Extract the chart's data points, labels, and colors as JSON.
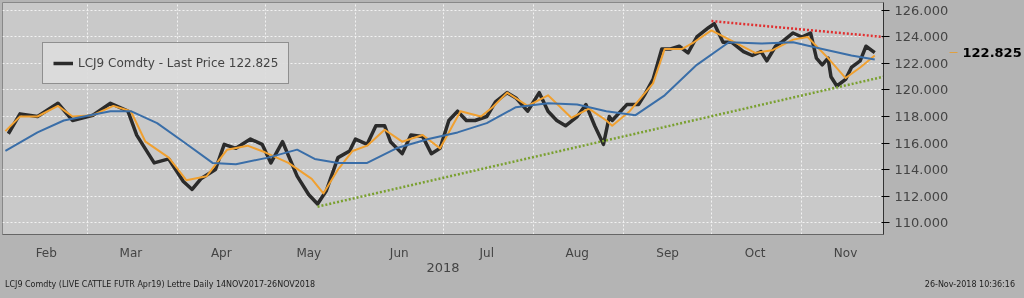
{
  "chart_data": {
    "type": "line",
    "xlabel": "2018",
    "x": [
      "2018-02-02",
      "2018-02-06",
      "2018-02-12",
      "2018-02-19",
      "2018-02-24",
      "2018-03-03",
      "2018-03-09",
      "2018-03-15",
      "2018-03-18",
      "2018-03-24",
      "2018-03-29",
      "2018-04-03",
      "2018-04-06",
      "2018-04-09",
      "2018-04-14",
      "2018-04-17",
      "2018-04-21",
      "2018-04-26",
      "2018-04-30",
      "2018-05-03",
      "2018-05-07",
      "2018-05-12",
      "2018-05-16",
      "2018-05-19",
      "2018-05-22",
      "2018-05-26",
      "2018-05-30",
      "2018-06-01",
      "2018-06-05",
      "2018-06-08",
      "2018-06-11",
      "2018-06-13",
      "2018-06-17",
      "2018-06-20",
      "2018-06-24",
      "2018-06-27",
      "2018-06-30",
      "2018-07-03",
      "2018-07-06",
      "2018-07-09",
      "2018-07-12",
      "2018-07-16",
      "2018-07-19",
      "2018-07-23",
      "2018-07-26",
      "2018-07-30",
      "2018-08-03",
      "2018-08-06",
      "2018-08-09",
      "2018-08-12",
      "2018-08-16",
      "2018-08-19",
      "2018-08-22",
      "2018-08-25",
      "2018-08-27",
      "2018-08-28",
      "2018-09-02",
      "2018-09-06",
      "2018-09-08",
      "2018-09-11",
      "2018-09-14",
      "2018-09-17",
      "2018-09-20",
      "2018-09-23",
      "2018-09-26",
      "2018-09-30",
      "2018-10-02",
      "2018-10-05",
      "2018-10-08",
      "2018-10-12",
      "2018-10-15",
      "2018-10-18",
      "2018-10-20",
      "2018-10-23",
      "2018-10-25",
      "2018-10-29",
      "2018-11-01",
      "2018-11-04",
      "2018-11-06",
      "2018-11-08",
      "2018-11-10",
      "2018-11-11",
      "2018-11-13",
      "2018-11-16",
      "2018-11-18",
      "2018-11-21",
      "2018-11-23",
      "2018-11-26"
    ],
    "series": [
      {
        "name": "LCJ9 Comdty - Last Price 122.825",
        "color": "#2b2b2b",
        "values": [
          116.7,
          118.2,
          118.0,
          119.0,
          117.7,
          118.1,
          119.0,
          118.4,
          116.6,
          114.5,
          114.8,
          113.1,
          112.5,
          113.3,
          114.0,
          115.9,
          115.6,
          116.3,
          115.9,
          114.5,
          116.1,
          113.5,
          112.1,
          111.4,
          112.4,
          114.9,
          115.4,
          116.3,
          115.9,
          117.3,
          117.3,
          116.1,
          115.2,
          116.6,
          116.5,
          115.2,
          115.6,
          117.7,
          118.4,
          117.7,
          117.7,
          118.0,
          119.1,
          119.8,
          119.4,
          118.4,
          119.8,
          118.4,
          117.7,
          117.3,
          118.0,
          118.9,
          117.3,
          115.9,
          118.0,
          117.7,
          118.9,
          118.9,
          119.6,
          120.8,
          123.1,
          123.1,
          123.3,
          122.8,
          124.0,
          124.7,
          125.0,
          123.6,
          123.6,
          122.9,
          122.6,
          122.9,
          122.2,
          123.3,
          123.6,
          124.3,
          124.0,
          124.3,
          122.4,
          121.9,
          122.4,
          121.0,
          120.3,
          120.8,
          121.7,
          122.2,
          123.3,
          122.825
        ]
      },
      {
        "color": "#f0a030",
        "x": [
          "2018-02-01",
          "2018-02-06",
          "2018-02-12",
          "2018-02-19",
          "2018-02-24",
          "2018-03-03",
          "2018-03-10",
          "2018-03-16",
          "2018-03-21",
          "2018-03-29",
          "2018-04-04",
          "2018-04-11",
          "2018-04-18",
          "2018-04-25",
          "2018-05-01",
          "2018-05-09",
          "2018-05-17",
          "2018-05-21",
          "2018-05-26",
          "2018-05-31",
          "2018-06-05",
          "2018-06-11",
          "2018-06-17",
          "2018-06-24",
          "2018-06-30",
          "2018-07-07",
          "2018-07-14",
          "2018-07-18",
          "2018-07-23",
          "2018-07-30",
          "2018-08-06",
          "2018-08-14",
          "2018-08-20",
          "2018-08-26",
          "2018-08-28",
          "2018-09-03",
          "2018-09-11",
          "2018-09-15",
          "2018-09-21",
          "2018-09-25",
          "2018-10-01",
          "2018-10-09",
          "2018-10-16",
          "2018-10-22",
          "2018-10-29",
          "2018-11-03",
          "2018-11-10",
          "2018-11-16",
          "2018-11-21",
          "2018-11-26"
        ],
        "values": [
          116.9,
          118.0,
          118.0,
          118.8,
          118.0,
          118.1,
          118.8,
          118.4,
          116.1,
          114.9,
          113.2,
          113.5,
          115.5,
          115.8,
          115.3,
          114.5,
          113.3,
          112.2,
          114.0,
          115.4,
          115.8,
          117.0,
          116.1,
          116.6,
          115.6,
          118.4,
          118.0,
          118.7,
          119.8,
          118.8,
          119.6,
          117.9,
          118.6,
          117.7,
          117.3,
          118.4,
          120.5,
          123.1,
          123.1,
          123.6,
          124.5,
          123.6,
          122.8,
          123.0,
          123.8,
          124.0,
          122.4,
          120.9,
          121.7,
          122.6
        ]
      },
      {
        "color": "#3a6ea8",
        "x": [
          "2018-02-01",
          "2018-02-12",
          "2018-02-21",
          "2018-03-09",
          "2018-03-16",
          "2018-03-25",
          "2018-04-03",
          "2018-04-13",
          "2018-04-21",
          "2018-05-02",
          "2018-05-12",
          "2018-05-18",
          "2018-05-26",
          "2018-06-05",
          "2018-06-15",
          "2018-06-26",
          "2018-07-06",
          "2018-07-16",
          "2018-07-26",
          "2018-08-06",
          "2018-08-16",
          "2018-08-26",
          "2018-09-05",
          "2018-09-15",
          "2018-09-26",
          "2018-10-07",
          "2018-10-18",
          "2018-10-29",
          "2018-11-08",
          "2018-11-18",
          "2018-11-26"
        ],
        "values": [
          115.4,
          116.8,
          117.7,
          118.4,
          118.4,
          117.5,
          116.1,
          114.5,
          114.4,
          114.9,
          115.5,
          114.8,
          114.5,
          114.5,
          115.6,
          116.3,
          116.8,
          117.5,
          118.7,
          119.0,
          118.9,
          118.4,
          118.1,
          119.6,
          121.9,
          123.6,
          123.5,
          123.6,
          123.1,
          122.6,
          122.3
        ]
      },
      {
        "color": "#e03030",
        "line_style": "dotted",
        "x": [
          "2018-10-01",
          "2018-11-29"
        ],
        "values": [
          125.2,
          124.0
        ]
      },
      {
        "color": "#7aa030",
        "line_style": "dotted",
        "x": [
          "2018-05-19",
          "2018-11-29"
        ],
        "values": [
          111.2,
          121.0
        ]
      }
    ],
    "xlim": [
      "2018-01-31",
      "2018-11-29"
    ],
    "xticks": [
      {
        "value": "2018-02-15",
        "label": "Feb"
      },
      {
        "value": "2018-03-01",
        "label": null
      },
      {
        "value": "2018-03-16",
        "label": "Mar"
      },
      {
        "value": "2018-04-01",
        "label": null
      },
      {
        "value": "2018-04-16",
        "label": "Apr"
      },
      {
        "value": "2018-05-01",
        "label": null
      },
      {
        "value": "2018-05-16",
        "label": "May"
      },
      {
        "value": "2018-06-01",
        "label": null
      },
      {
        "value": "2018-06-16",
        "label": "Jun"
      },
      {
        "value": "2018-07-01",
        "label": null
      },
      {
        "value": "2018-07-16",
        "label": "Jul"
      },
      {
        "value": "2018-08-01",
        "label": null
      },
      {
        "value": "2018-08-16",
        "label": "Aug"
      },
      {
        "value": "2018-09-01",
        "label": null
      },
      {
        "value": "2018-09-16",
        "label": "Sep"
      },
      {
        "value": "2018-10-01",
        "label": null
      },
      {
        "value": "2018-10-16",
        "label": "Oct"
      },
      {
        "value": "2018-11-01",
        "label": null
      },
      {
        "value": "2018-11-16",
        "label": "Nov"
      }
    ],
    "ylim": [
      109.1,
      126.6
    ],
    "yticks": [
      {
        "value": 110,
        "label": "110.000"
      },
      {
        "value": 112,
        "label": "112.000"
      },
      {
        "value": 114,
        "label": "114.000"
      },
      {
        "value": 116,
        "label": "116.000"
      },
      {
        "value": 118,
        "label": "118.000"
      },
      {
        "value": 120,
        "label": "120.000"
      },
      {
        "value": 122,
        "label": "122.000"
      },
      {
        "value": 124,
        "label": "124.000"
      },
      {
        "value": 126,
        "label": "126.000"
      }
    ],
    "grid": true,
    "legend": "top left",
    "annotations": [
      "122.825",
      "LCJ9 Comdty (LIVE CATTLE FUTR  Apr19) Lettre  Daily 14NOV2017-26NOV2018",
      "26-Nov-2018 10:36:16"
    ]
  }
}
